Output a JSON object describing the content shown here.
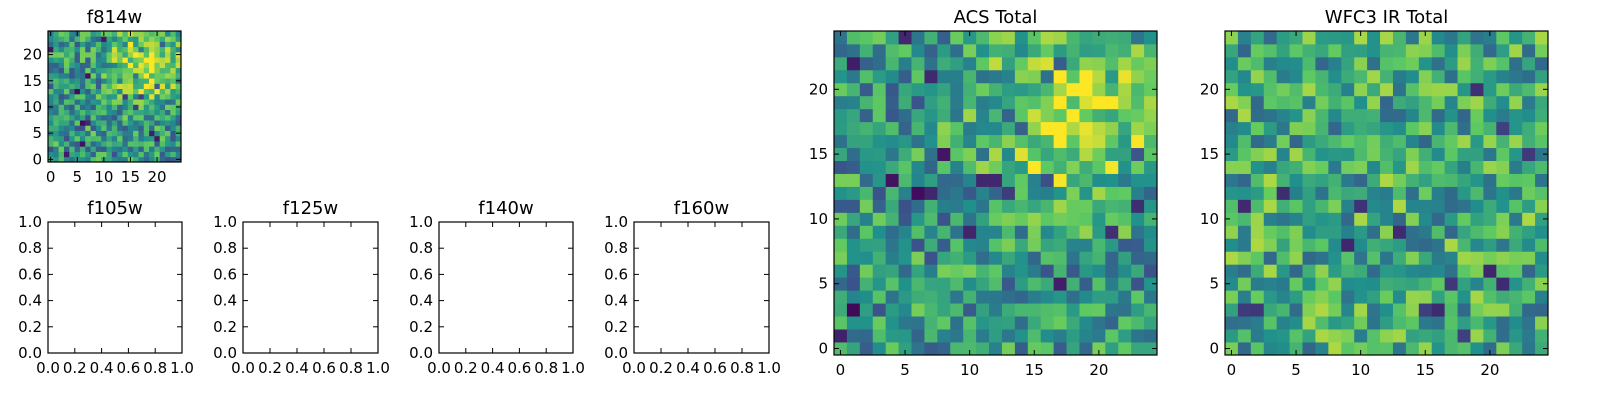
{
  "chart_data": [
    {
      "id": "f814w",
      "type": "heatmap",
      "title": "f814w",
      "xlabel": "",
      "ylabel": "",
      "xlim": [
        -0.5,
        24.5
      ],
      "ylim": [
        -0.5,
        24.5
      ],
      "xticks": [
        0,
        5,
        10,
        15,
        20
      ],
      "yticks": [
        0,
        5,
        10,
        15,
        20
      ],
      "colormap": "viridis",
      "grid_size": 25,
      "hotspot": {
        "x": 18,
        "y": 18,
        "radius": 4.5
      }
    },
    {
      "id": "f105w",
      "type": "heatmap",
      "title": "f105w",
      "xlim": [
        0.0,
        1.0
      ],
      "ylim": [
        0.0,
        1.0
      ],
      "xticks": [
        "0.0",
        "0.2",
        "0.4",
        "0.6",
        "0.8",
        "1.0"
      ],
      "yticks": [
        "0.0",
        "0.2",
        "0.4",
        "0.6",
        "0.8",
        "1.0"
      ],
      "empty": true
    },
    {
      "id": "f125w",
      "type": "heatmap",
      "title": "f125w",
      "xlim": [
        0.0,
        1.0
      ],
      "ylim": [
        0.0,
        1.0
      ],
      "xticks": [
        "0.0",
        "0.2",
        "0.4",
        "0.6",
        "0.8",
        "1.0"
      ],
      "yticks": [
        "0.0",
        "0.2",
        "0.4",
        "0.6",
        "0.8",
        "1.0"
      ],
      "empty": true
    },
    {
      "id": "f140w",
      "type": "heatmap",
      "title": "f140w",
      "xlim": [
        0.0,
        1.0
      ],
      "ylim": [
        0.0,
        1.0
      ],
      "xticks": [
        "0.0",
        "0.2",
        "0.4",
        "0.6",
        "0.8",
        "1.0"
      ],
      "yticks": [
        "0.0",
        "0.2",
        "0.4",
        "0.6",
        "0.8",
        "1.0"
      ],
      "empty": true
    },
    {
      "id": "f160w",
      "type": "heatmap",
      "title": "f160w",
      "xlim": [
        0.0,
        1.0
      ],
      "ylim": [
        0.0,
        1.0
      ],
      "xticks": [
        "0.0",
        "0.2",
        "0.4",
        "0.6",
        "0.8",
        "1.0"
      ],
      "yticks": [
        "0.0",
        "0.2",
        "0.4",
        "0.6",
        "0.8",
        "1.0"
      ],
      "empty": true
    },
    {
      "id": "acs-total",
      "type": "heatmap",
      "title": "ACS Total",
      "xlim": [
        -0.5,
        24.5
      ],
      "ylim": [
        -0.5,
        24.5
      ],
      "xticks": [
        0,
        5,
        10,
        15,
        20
      ],
      "yticks": [
        0,
        5,
        10,
        15,
        20
      ],
      "colormap": "viridis",
      "grid_size": 25,
      "hotspot": {
        "x": 18,
        "y": 18,
        "radius": 4.5
      }
    },
    {
      "id": "wfc3-ir-total",
      "type": "heatmap",
      "title": "WFC3 IR Total",
      "xlim": [
        -0.5,
        24.5
      ],
      "ylim": [
        -0.5,
        24.5
      ],
      "xticks": [
        0,
        5,
        10,
        15,
        20
      ],
      "yticks": [
        0,
        5,
        10,
        15,
        20
      ],
      "colormap": "viridis",
      "grid_size": 25,
      "hotspot": null
    }
  ]
}
